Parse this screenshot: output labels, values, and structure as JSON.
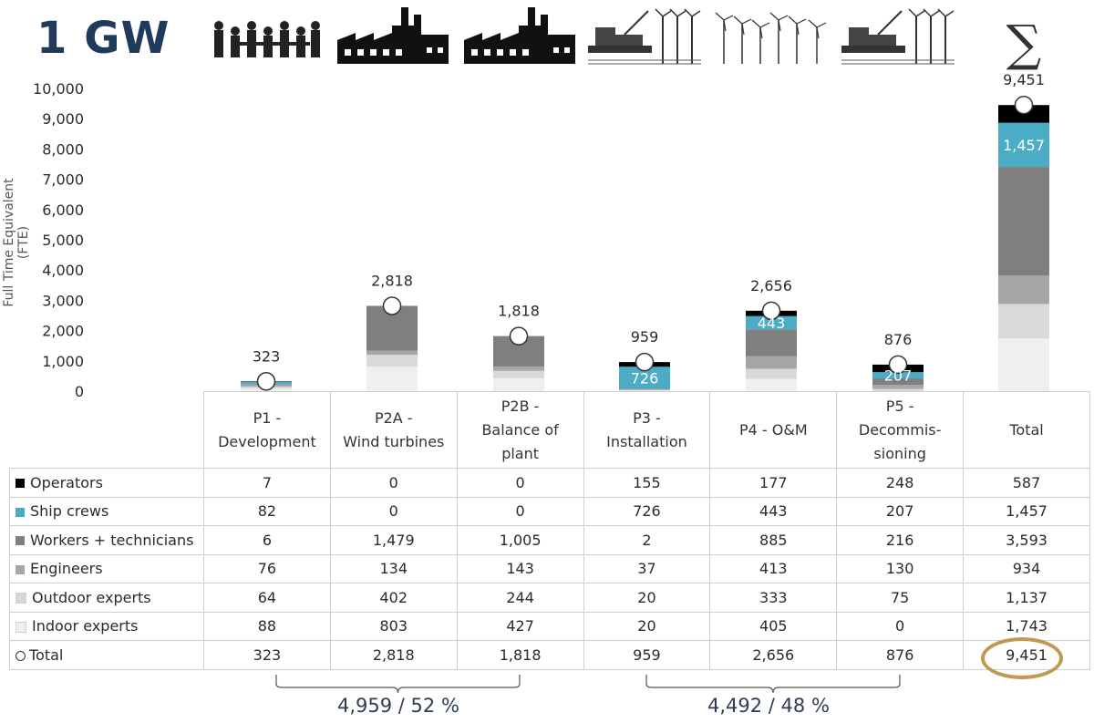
{
  "header": {
    "title": "1 GW",
    "sum_symbol": "∑"
  },
  "icons": [
    "meeting-people-icon",
    "factory-icon",
    "factory-icon",
    "offshore-vessel-icon",
    "wind-farm-icon",
    "offshore-vessel-icon"
  ],
  "chart_data": {
    "type": "bar",
    "stacked": true,
    "ylabel": "Full Time Equivalent (FTE)",
    "ylim": [
      0,
      10000
    ],
    "yticks": [
      "0",
      "1,000",
      "2,000",
      "3,000",
      "4,000",
      "5,000",
      "6,000",
      "7,000",
      "8,000",
      "9,000",
      "10,000"
    ],
    "categories": [
      "P1 - Development",
      "P2A - Wind turbines",
      "P2B - Balance of plant",
      "P3 - Installation",
      "P4 - O&M",
      "P5 - Decommis-sioning",
      "Total"
    ],
    "series": [
      {
        "name": "Indoor experts",
        "color": "#efefef",
        "values": [
          88,
          803,
          427,
          20,
          405,
          0,
          1743
        ]
      },
      {
        "name": "Outdoor experts",
        "color": "#d9d9d9",
        "values": [
          64,
          402,
          244,
          20,
          333,
          75,
          1137
        ]
      },
      {
        "name": "Engineers",
        "color": "#a6a6a6",
        "values": [
          76,
          134,
          143,
          37,
          413,
          130,
          934
        ]
      },
      {
        "name": "Workers + technicians",
        "color": "#7f7f7f",
        "values": [
          6,
          1479,
          1005,
          2,
          885,
          216,
          3593
        ]
      },
      {
        "name": "Ship crews",
        "color": "#4bacc6",
        "values": [
          82,
          0,
          0,
          726,
          443,
          207,
          1457
        ]
      },
      {
        "name": "Operators",
        "color": "#000000",
        "values": [
          7,
          0,
          0,
          155,
          177,
          248,
          587
        ]
      }
    ],
    "totals": [
      323,
      2818,
      1818,
      959,
      2656,
      876,
      9451
    ],
    "total_labels": [
      "323",
      "2,818",
      "1,818",
      "959",
      "2,656",
      "876",
      "9,451"
    ],
    "inner_labels": [
      {
        "category": "P3 - Installation",
        "series": "Ship crews",
        "text": "726"
      },
      {
        "category": "P4 - O&M",
        "series": "Ship crews",
        "text": "443"
      },
      {
        "category": "P5 - Decommis-sioning",
        "series": "Ship crews",
        "text": "207"
      },
      {
        "category": "Total",
        "series": "Ship crews",
        "text": "1,457"
      }
    ]
  },
  "table": {
    "headers": [
      [
        "P1 -",
        "Development"
      ],
      [
        "P2A -",
        "Wind turbines"
      ],
      [
        "P2B -",
        "Balance of",
        "plant"
      ],
      [
        "P3 -",
        "Installation"
      ],
      [
        "P4 - O&M"
      ],
      [
        "P5 -",
        "Decommis-",
        "sioning"
      ],
      [
        "Total"
      ]
    ],
    "rows": [
      {
        "label": "Operators",
        "swatch": "#000000",
        "cells": [
          "7",
          "0",
          "0",
          "155",
          "177",
          "248",
          "587"
        ]
      },
      {
        "label": "Ship crews",
        "swatch": "#4bacc6",
        "cells": [
          "82",
          "0",
          "0",
          "726",
          "443",
          "207",
          "1,457"
        ]
      },
      {
        "label": "Workers + technicians",
        "swatch": "#7f7f7f",
        "cells": [
          "6",
          "1,479",
          "1,005",
          "2",
          "885",
          "216",
          "3,593"
        ]
      },
      {
        "label": "Engineers",
        "swatch": "#a6a6a6",
        "cells": [
          "76",
          "134",
          "143",
          "37",
          "413",
          "130",
          "934"
        ]
      },
      {
        "label": "Outdoor experts",
        "swatch": "#d9d9d9",
        "cells": [
          "64",
          "402",
          "244",
          "20",
          "333",
          "75",
          "1,137"
        ]
      },
      {
        "label": "Indoor experts",
        "swatch": "#efefef",
        "cells": [
          "88",
          "803",
          "427",
          "20",
          "405",
          "0",
          "1,743"
        ]
      },
      {
        "label": "Total",
        "swatch": "circle",
        "cells": [
          "323",
          "2,818",
          "1,818",
          "959",
          "2,656",
          "876",
          "9,451"
        ]
      }
    ]
  },
  "summary": {
    "left": "4,959 / 52 %",
    "right": "4,492 / 48 %"
  },
  "colors": {
    "title": "#1f3a5a",
    "highlight_ellipse": "#c19a52"
  }
}
